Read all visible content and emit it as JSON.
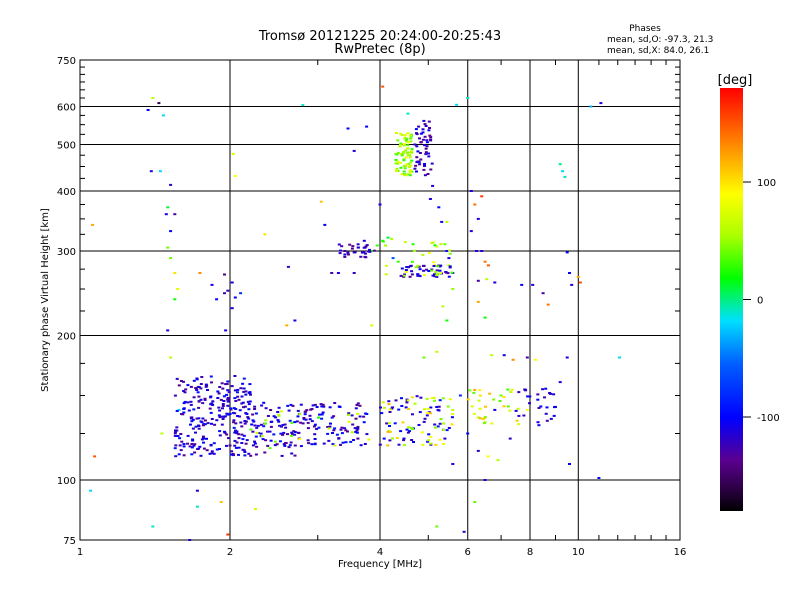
{
  "chart_data": {
    "type": "scatter",
    "title": "Tromsø 20121225 20:24:00-20:25:43",
    "subtitle": "RwPretec (8p)",
    "xlabel": "Frequency [MHz]",
    "ylabel": "Stationary phase Virtual Height [km]",
    "x_scale": "log2",
    "y_scale": "log",
    "xlim": [
      1,
      16
    ],
    "ylim": [
      75,
      750
    ],
    "x_ticks": [
      1,
      2,
      4,
      6,
      8,
      10,
      16
    ],
    "x_tick_labels": [
      "1",
      "2",
      "4",
      "6",
      "8",
      "10",
      "16"
    ],
    "x_minor_ticks": [
      3,
      5,
      7,
      9,
      11,
      12,
      13,
      14,
      15
    ],
    "y_ticks": [
      75,
      100,
      200,
      300,
      400,
      500,
      600,
      750
    ],
    "y_tick_labels": [
      "75",
      "100",
      "200",
      "300",
      "400",
      "500",
      "600",
      "750"
    ],
    "y_minor_ticks": [
      125,
      150,
      175,
      225,
      250,
      275,
      325,
      350,
      375,
      425,
      450,
      475,
      525,
      550,
      575,
      625,
      650,
      675,
      700,
      725
    ],
    "grid": true,
    "colorbar": {
      "label": "[deg]",
      "range": [
        -180,
        180
      ],
      "ticks": [
        100,
        0,
        -100
      ],
      "tick_labels": [
        "100",
        "0",
        "-100"
      ],
      "colormap": "rainbow"
    },
    "legend_text": {
      "title": "Phases",
      "line1": "mean, sd,O: -97.3, 21.3",
      "line2": "mean, sd,X:  84.0, 26.1"
    },
    "series": [
      {
        "name": "Phases",
        "points": [
          [
            1.44,
            610,
            -160
          ],
          [
            1.4,
            625,
            60
          ],
          [
            1.37,
            590,
            -100
          ],
          [
            1.47,
            575,
            -20
          ],
          [
            1.39,
            440,
            -110
          ],
          [
            1.52,
            412,
            -120
          ],
          [
            1.45,
            440,
            -20
          ],
          [
            1.5,
            370,
            10
          ],
          [
            1.49,
            358,
            -110
          ],
          [
            1.55,
            358,
            -130
          ],
          [
            1.52,
            330,
            -100
          ],
          [
            1.5,
            305,
            40
          ],
          [
            1.52,
            290,
            40
          ],
          [
            1.55,
            270,
            100
          ],
          [
            1.57,
            250,
            80
          ],
          [
            1.55,
            238,
            20
          ],
          [
            1.5,
            205,
            -110
          ],
          [
            1.52,
            180,
            60
          ],
          [
            1.58,
            140,
            -20
          ],
          [
            1.46,
            125,
            60
          ],
          [
            1.4,
            80,
            -10
          ],
          [
            1.05,
            95,
            -20
          ],
          [
            1.07,
            112,
            150
          ],
          [
            1.06,
            340,
            120
          ],
          [
            1.74,
            270,
            130
          ],
          [
            1.84,
            255,
            -110
          ],
          [
            1.88,
            238,
            -100
          ],
          [
            1.95,
            268,
            -140
          ],
          [
            1.98,
            248,
            -120
          ],
          [
            2.02,
            258,
            -110
          ],
          [
            2.05,
            240,
            -100
          ],
          [
            2.02,
            228,
            -110
          ],
          [
            1.95,
            245,
            -130
          ],
          [
            2.1,
            245,
            -80
          ],
          [
            1.96,
            205,
            -110
          ],
          [
            2.03,
            478,
            70
          ],
          [
            2.05,
            430,
            90
          ],
          [
            2.35,
            325,
            100
          ],
          [
            2.62,
            278,
            -120
          ],
          [
            2.6,
            210,
            120
          ],
          [
            2.7,
            215,
            -110
          ],
          [
            2.8,
            604,
            -10
          ],
          [
            3.05,
            380,
            110
          ],
          [
            3.1,
            340,
            -100
          ],
          [
            3.2,
            270,
            -130
          ],
          [
            3.3,
            270,
            -110
          ],
          [
            3.55,
            270,
            -120
          ],
          [
            3.45,
            540,
            -100
          ],
          [
            3.55,
            485,
            -110
          ],
          [
            3.4,
            300,
            -130
          ],
          [
            3.55,
            298,
            -120
          ],
          [
            3.62,
            305,
            -140
          ],
          [
            3.72,
            315,
            -110
          ],
          [
            3.76,
            545,
            -100
          ],
          [
            3.85,
            300,
            20
          ],
          [
            4.05,
            660,
            150
          ],
          [
            4.0,
            375,
            -110
          ],
          [
            3.95,
            308,
            30
          ],
          [
            4.05,
            315,
            20
          ],
          [
            4.15,
            320,
            10
          ],
          [
            4.25,
            290,
            -60
          ],
          [
            4.35,
            285,
            30
          ],
          [
            4.55,
            580,
            -10
          ],
          [
            4.52,
            510,
            20
          ],
          [
            4.55,
            490,
            40
          ],
          [
            4.6,
            470,
            60
          ],
          [
            4.56,
            455,
            40
          ],
          [
            4.62,
            520,
            10
          ],
          [
            4.52,
            470,
            80
          ],
          [
            4.6,
            440,
            60
          ],
          [
            4.7,
            500,
            -120
          ],
          [
            4.8,
            515,
            -130
          ],
          [
            4.88,
            530,
            -110
          ],
          [
            4.82,
            480,
            -130
          ],
          [
            4.95,
            490,
            -140
          ],
          [
            4.9,
            560,
            -110
          ],
          [
            4.78,
            545,
            -120
          ],
          [
            5.1,
            410,
            -110
          ],
          [
            5.05,
            385,
            -110
          ],
          [
            5.25,
            370,
            -100
          ],
          [
            5.32,
            345,
            -110
          ],
          [
            5.3,
            310,
            60
          ],
          [
            5.4,
            310,
            40
          ],
          [
            5.45,
            300,
            -100
          ],
          [
            5.5,
            290,
            -110
          ],
          [
            5.15,
            280,
            100
          ],
          [
            5.6,
            270,
            -120
          ],
          [
            5.2,
            265,
            -110
          ],
          [
            5.6,
            250,
            50
          ],
          [
            5.35,
            230,
            60
          ],
          [
            5.45,
            215,
            20
          ],
          [
            5.5,
            280,
            60
          ],
          [
            5.45,
            345,
            60
          ],
          [
            5.7,
            605,
            -20
          ],
          [
            6.0,
            625,
            -10
          ],
          [
            6.1,
            400,
            -110
          ],
          [
            6.2,
            375,
            140
          ],
          [
            6.3,
            350,
            -110
          ],
          [
            6.4,
            390,
            160
          ],
          [
            6.1,
            330,
            -110
          ],
          [
            6.25,
            300,
            -110
          ],
          [
            6.4,
            300,
            -110
          ],
          [
            6.5,
            285,
            140
          ],
          [
            6.6,
            280,
            150
          ],
          [
            6.3,
            260,
            -130
          ],
          [
            6.55,
            262,
            60
          ],
          [
            6.8,
            258,
            -110
          ],
          [
            6.3,
            235,
            120
          ],
          [
            6.5,
            218,
            20
          ],
          [
            7.7,
            255,
            -100
          ],
          [
            8.1,
            255,
            -110
          ],
          [
            8.5,
            245,
            -130
          ],
          [
            8.7,
            232,
            140
          ],
          [
            9.2,
            455,
            0
          ],
          [
            9.3,
            440,
            -20
          ],
          [
            9.4,
            428,
            -10
          ],
          [
            9.5,
            298,
            -100
          ],
          [
            9.6,
            270,
            -100
          ],
          [
            9.7,
            255,
            -110
          ],
          [
            10.0,
            265,
            120
          ],
          [
            10.1,
            258,
            150
          ],
          [
            10.6,
            600,
            -30
          ],
          [
            11.1,
            610,
            -110
          ],
          [
            12.1,
            180,
            -20
          ],
          [
            3.85,
            210,
            70
          ],
          [
            4.9,
            180,
            40
          ],
          [
            5.2,
            185,
            60
          ],
          [
            6.7,
            182,
            60
          ],
          [
            7.1,
            182,
            -110
          ],
          [
            7.4,
            178,
            130
          ],
          [
            7.9,
            180,
            -130
          ],
          [
            8.2,
            178,
            90
          ],
          [
            9.5,
            180,
            -110
          ],
          [
            5.4,
            122,
            -110
          ],
          [
            5.6,
            140,
            60
          ],
          [
            5.8,
            150,
            -80
          ],
          [
            6.0,
            125,
            -100
          ],
          [
            6.3,
            135,
            60
          ],
          [
            6.5,
            132,
            60
          ],
          [
            6.8,
            140,
            -110
          ],
          [
            7.0,
            150,
            40
          ],
          [
            7.3,
            122,
            -120
          ],
          [
            7.6,
            136,
            -120
          ],
          [
            7.9,
            140,
            90
          ],
          [
            8.3,
            132,
            -110
          ],
          [
            8.6,
            155,
            -100
          ],
          [
            9.0,
            142,
            -110
          ],
          [
            9.2,
            160,
            -110
          ],
          [
            6.3,
            115,
            -120
          ],
          [
            6.6,
            112,
            90
          ],
          [
            6.9,
            110,
            60
          ],
          [
            5.6,
            108,
            -110
          ],
          [
            9.6,
            108,
            -100
          ],
          [
            11.0,
            101,
            -100
          ],
          [
            6.5,
            100,
            -110
          ],
          [
            6.2,
            90,
            40
          ],
          [
            5.9,
            78,
            -120
          ],
          [
            5.2,
            80,
            40
          ],
          [
            1.72,
            88,
            -10
          ],
          [
            2.25,
            87,
            70
          ],
          [
            1.98,
            77,
            160
          ],
          [
            1.92,
            90,
            110
          ],
          [
            1.66,
            75,
            -120
          ],
          [
            1.72,
            95,
            -110
          ]
        ]
      }
    ],
    "clusters": [
      {
        "x_range": [
          1.55,
          2.2
        ],
        "y_range": [
          112,
          165
        ],
        "color": [
          -140,
          -90
        ],
        "count": 260
      },
      {
        "x_range": [
          2.2,
          2.8
        ],
        "y_range": [
          112,
          145
        ],
        "color": [
          -140,
          -90
        ],
        "count": 90
      },
      {
        "x_range": [
          2.2,
          2.8
        ],
        "y_range": [
          115,
          140
        ],
        "color": [
          30,
          90
        ],
        "count": 14
      },
      {
        "x_range": [
          2.8,
          3.8
        ],
        "y_range": [
          118,
          145
        ],
        "color": [
          -140,
          -90
        ],
        "count": 90
      },
      {
        "x_range": [
          2.8,
          3.8
        ],
        "y_range": [
          118,
          140
        ],
        "color": [
          20,
          90
        ],
        "count": 8
      },
      {
        "x_range": [
          4.0,
          5.6
        ],
        "y_range": [
          118,
          150
        ],
        "color": [
          -130,
          -90
        ],
        "count": 55
      },
      {
        "x_range": [
          4.0,
          5.6
        ],
        "y_range": [
          118,
          150
        ],
        "color": [
          40,
          120
        ],
        "count": 45
      },
      {
        "x_range": [
          4.3,
          4.65
        ],
        "y_range": [
          430,
          530
        ],
        "color": [
          20,
          90
        ],
        "count": 70
      },
      {
        "x_range": [
          4.7,
          5.1
        ],
        "y_range": [
          430,
          560
        ],
        "color": [
          -140,
          -100
        ],
        "count": 45
      },
      {
        "x_range": [
          3.3,
          3.9
        ],
        "y_range": [
          290,
          310
        ],
        "color": [
          -140,
          -110
        ],
        "count": 28
      },
      {
        "x_range": [
          4.4,
          5.6
        ],
        "y_range": [
          265,
          280
        ],
        "color": [
          -140,
          -100
        ],
        "count": 40
      },
      {
        "x_range": [
          4.0,
          5.6
        ],
        "y_range": [
          265,
          320
        ],
        "color": [
          20,
          90
        ],
        "count": 30
      },
      {
        "x_range": [
          6.0,
          7.6
        ],
        "y_range": [
          128,
          155
        ],
        "color": [
          30,
          120
        ],
        "count": 30
      },
      {
        "x_range": [
          7.4,
          9.0
        ],
        "y_range": [
          130,
          155
        ],
        "color": [
          -130,
          -100
        ],
        "count": 25
      }
    ]
  }
}
